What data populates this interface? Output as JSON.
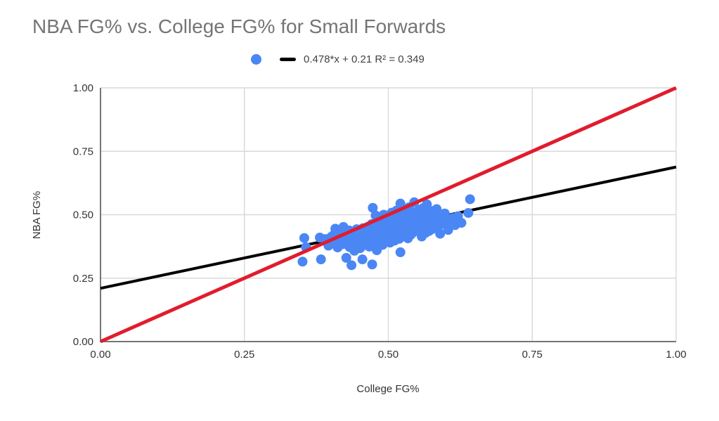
{
  "page": {
    "background": "#ffffff"
  },
  "colors": {
    "title_text": "#757575",
    "tick_text": "#333333",
    "axis_line": "#757575",
    "gridline": "#d9d9d9",
    "legend_text": "#424242"
  },
  "chart_data": {
    "type": "scatter",
    "title": "NBA FG% vs. College FG% for Small Forwards",
    "xlabel": "College FG%",
    "ylabel": "NBA FG%",
    "xlim": [
      0,
      1
    ],
    "ylim": [
      0,
      1
    ],
    "grid": true,
    "legend_position": "top-center",
    "xticks": {
      "values": [
        0,
        0.25,
        0.5,
        0.75,
        1
      ],
      "labels": [
        "0.00",
        "0.25",
        "0.50",
        "0.75",
        "1.00"
      ]
    },
    "yticks": {
      "values": [
        0,
        0.25,
        0.5,
        0.75,
        1
      ],
      "labels": [
        "0.00",
        "0.25",
        "0.50",
        "0.75",
        "1.00"
      ]
    },
    "point_color": "#4a87f4",
    "point_radius": 7,
    "trendline": {
      "slope": 0.478,
      "intercept": 0.21,
      "r2": 0.349,
      "label": "0.478*x + 0.21 R² = 0.349",
      "color": "#000000",
      "width": 4
    },
    "identity_line": {
      "name": "y-equals-x-reference",
      "from": [
        0,
        0
      ],
      "to": [
        1,
        1
      ],
      "color": "#e11c2d",
      "width": 5
    },
    "points": [
      [
        0.351,
        0.315
      ],
      [
        0.354,
        0.408
      ],
      [
        0.357,
        0.372
      ],
      [
        0.381,
        0.41
      ],
      [
        0.383,
        0.324
      ],
      [
        0.391,
        0.404
      ],
      [
        0.396,
        0.378
      ],
      [
        0.401,
        0.413
      ],
      [
        0.403,
        0.388
      ],
      [
        0.406,
        0.422
      ],
      [
        0.408,
        0.445
      ],
      [
        0.409,
        0.396
      ],
      [
        0.412,
        0.371
      ],
      [
        0.415,
        0.428
      ],
      [
        0.418,
        0.405
      ],
      [
        0.421,
        0.384
      ],
      [
        0.422,
        0.452
      ],
      [
        0.424,
        0.419
      ],
      [
        0.427,
        0.33
      ],
      [
        0.43,
        0.401
      ],
      [
        0.432,
        0.438
      ],
      [
        0.433,
        0.372
      ],
      [
        0.435,
        0.415
      ],
      [
        0.436,
        0.301
      ],
      [
        0.437,
        0.392
      ],
      [
        0.439,
        0.426
      ],
      [
        0.441,
        0.358
      ],
      [
        0.443,
        0.411
      ],
      [
        0.445,
        0.443
      ],
      [
        0.447,
        0.387
      ],
      [
        0.449,
        0.42
      ],
      [
        0.451,
        0.368
      ],
      [
        0.452,
        0.433
      ],
      [
        0.454,
        0.399
      ],
      [
        0.455,
        0.324
      ],
      [
        0.456,
        0.447
      ],
      [
        0.458,
        0.412
      ],
      [
        0.459,
        0.381
      ],
      [
        0.461,
        0.43
      ],
      [
        0.462,
        0.395
      ],
      [
        0.464,
        0.452
      ],
      [
        0.465,
        0.417
      ],
      [
        0.467,
        0.374
      ],
      [
        0.468,
        0.44
      ],
      [
        0.47,
        0.405
      ],
      [
        0.471,
        0.463
      ],
      [
        0.472,
        0.304
      ],
      [
        0.473,
        0.527
      ],
      [
        0.474,
        0.428
      ],
      [
        0.476,
        0.391
      ],
      [
        0.477,
        0.448
      ],
      [
        0.478,
        0.497
      ],
      [
        0.479,
        0.413
      ],
      [
        0.48,
        0.36
      ],
      [
        0.482,
        0.47
      ],
      [
        0.483,
        0.436
      ],
      [
        0.485,
        0.402
      ],
      [
        0.486,
        0.455
      ],
      [
        0.488,
        0.421
      ],
      [
        0.49,
        0.381
      ],
      [
        0.491,
        0.446
      ],
      [
        0.492,
        0.5
      ],
      [
        0.493,
        0.415
      ],
      [
        0.495,
        0.472
      ],
      [
        0.496,
        0.437
      ],
      [
        0.498,
        0.489
      ],
      [
        0.5,
        0.455
      ],
      [
        0.501,
        0.42
      ],
      [
        0.502,
        0.478
      ],
      [
        0.503,
        0.39
      ],
      [
        0.505,
        0.443
      ],
      [
        0.506,
        0.508
      ],
      [
        0.507,
        0.462
      ],
      [
        0.509,
        0.428
      ],
      [
        0.51,
        0.485
      ],
      [
        0.511,
        0.398
      ],
      [
        0.513,
        0.45
      ],
      [
        0.514,
        0.516
      ],
      [
        0.515,
        0.468
      ],
      [
        0.517,
        0.434
      ],
      [
        0.518,
        0.494
      ],
      [
        0.519,
        0.405
      ],
      [
        0.521,
        0.544
      ],
      [
        0.521,
        0.352
      ],
      [
        0.522,
        0.459
      ],
      [
        0.523,
        0.425
      ],
      [
        0.525,
        0.502
      ],
      [
        0.526,
        0.47
      ],
      [
        0.528,
        0.436
      ],
      [
        0.53,
        0.512
      ],
      [
        0.531,
        0.478
      ],
      [
        0.532,
        0.444
      ],
      [
        0.534,
        0.407
      ],
      [
        0.535,
        0.489
      ],
      [
        0.536,
        0.529
      ],
      [
        0.538,
        0.455
      ],
      [
        0.539,
        0.421
      ],
      [
        0.541,
        0.496
      ],
      [
        0.542,
        0.463
      ],
      [
        0.543,
        0.43
      ],
      [
        0.545,
        0.549
      ],
      [
        0.546,
        0.504
      ],
      [
        0.547,
        0.472
      ],
      [
        0.549,
        0.44
      ],
      [
        0.55,
        0.512
      ],
      [
        0.552,
        0.479
      ],
      [
        0.553,
        0.447
      ],
      [
        0.555,
        0.52
      ],
      [
        0.556,
        0.486
      ],
      [
        0.558,
        0.414
      ],
      [
        0.559,
        0.453
      ],
      [
        0.561,
        0.527
      ],
      [
        0.562,
        0.494
      ],
      [
        0.564,
        0.461
      ],
      [
        0.565,
        0.429
      ],
      [
        0.567,
        0.541
      ],
      [
        0.568,
        0.501
      ],
      [
        0.57,
        0.468
      ],
      [
        0.571,
        0.436
      ],
      [
        0.573,
        0.508
      ],
      [
        0.574,
        0.475
      ],
      [
        0.576,
        0.443
      ],
      [
        0.578,
        0.515
      ],
      [
        0.58,
        0.482
      ],
      [
        0.582,
        0.45
      ],
      [
        0.584,
        0.522
      ],
      [
        0.586,
        0.489
      ],
      [
        0.588,
        0.457
      ],
      [
        0.59,
        0.425
      ],
      [
        0.593,
        0.496
      ],
      [
        0.595,
        0.464
      ],
      [
        0.598,
        0.505
      ],
      [
        0.601,
        0.472
      ],
      [
        0.604,
        0.44
      ],
      [
        0.608,
        0.479
      ],
      [
        0.612,
        0.487
      ],
      [
        0.616,
        0.459
      ],
      [
        0.621,
        0.494
      ],
      [
        0.627,
        0.468
      ],
      [
        0.639,
        0.507
      ],
      [
        0.642,
        0.561
      ]
    ]
  }
}
